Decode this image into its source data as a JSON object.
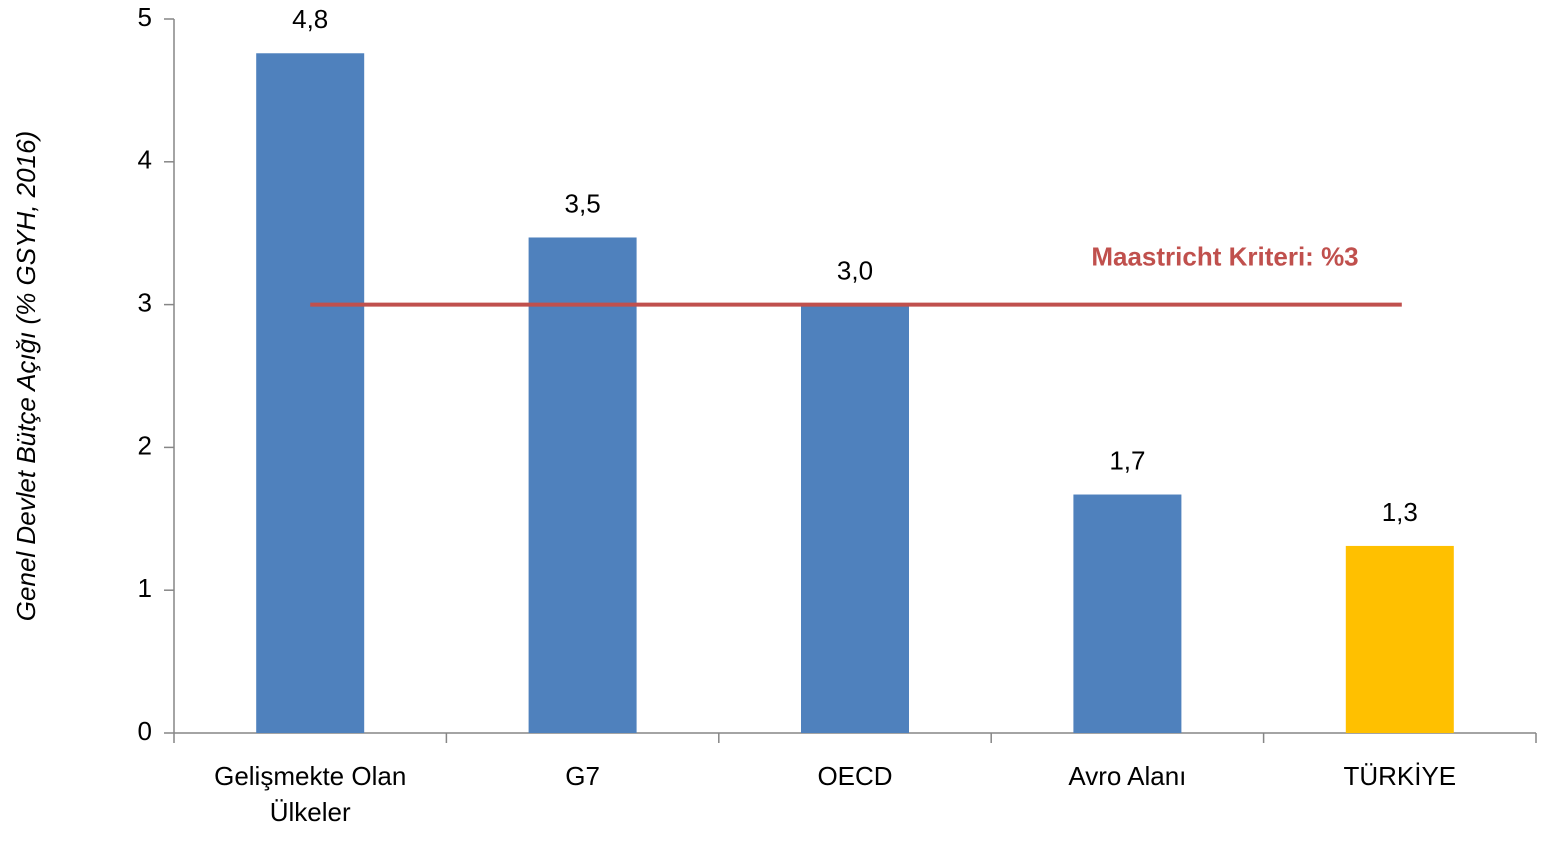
{
  "chart_data": {
    "type": "bar",
    "y_label": "Genel Devlet Bütçe Açığı (% GSYH, 2016)",
    "categories": [
      "Gelişmekte Olan Ülkeler",
      "G7",
      "OECD",
      "Avro Alanı",
      "TÜRKİYE"
    ],
    "values": [
      4.76,
      3.47,
      3.0,
      1.67,
      1.31
    ],
    "value_labels": [
      "4,8",
      "3,5",
      "3,0",
      "1,7",
      "1,3"
    ],
    "colors": [
      "#4f81bd",
      "#4f81bd",
      "#4f81bd",
      "#4f81bd",
      "#ffc000"
    ],
    "ylim": [
      0,
      5
    ],
    "yticks": [
      0,
      1,
      2,
      3,
      4,
      5
    ],
    "reference_line": {
      "value": 3,
      "label": "Maastricht Kriteri:  %3",
      "color": "#c0504d"
    }
  }
}
